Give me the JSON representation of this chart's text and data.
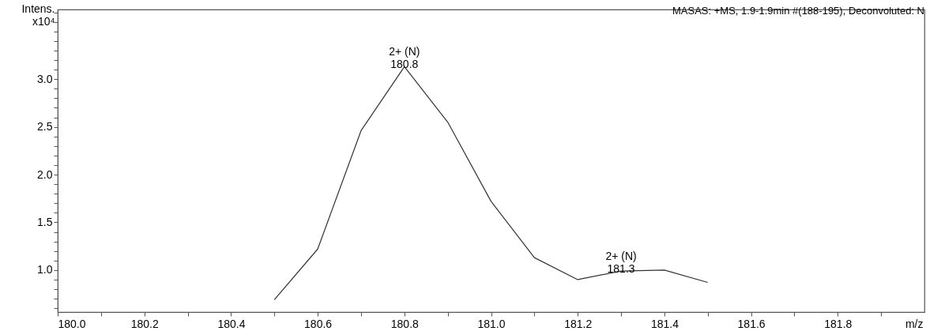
{
  "chart_data": {
    "type": "line",
    "title": "MASAS: +MS, 1.9-1.9min #(188-195), Deconvoluted: N",
    "xlabel": "m/z",
    "ylabel": "Intens.\nx10⁴",
    "x": [
      180.5,
      180.6,
      180.7,
      180.8,
      180.9,
      181.0,
      181.1,
      181.2,
      181.3,
      181.4,
      181.5
    ],
    "series": [
      {
        "color": "#333333",
        "values": [
          0.69,
          1.22,
          2.46,
          3.13,
          2.55,
          1.72,
          1.13,
          0.9,
          0.99,
          1.0,
          0.87
        ]
      }
    ],
    "xlim": [
      180.0,
      182.0
    ],
    "ylim": [
      0.56,
      3.73
    ],
    "xticks": [
      {
        "value": 180.0,
        "label": "180.0"
      },
      {
        "value": 180.1,
        "label": null
      },
      180.2,
      {
        "value": 180.3,
        "label": null
      },
      180.4,
      {
        "value": 180.5,
        "label": null
      },
      180.6,
      {
        "value": 180.7,
        "label": null
      },
      180.8,
      {
        "value": 180.9,
        "label": null
      },
      {
        "value": 181.0,
        "label": "181.0"
      },
      {
        "value": 181.1,
        "label": null
      },
      181.2,
      {
        "value": 181.3,
        "label": null
      },
      181.4,
      {
        "value": 181.5,
        "label": null
      },
      181.6,
      {
        "value": 181.7,
        "label": null
      },
      181.8,
      {
        "value": 181.9,
        "label": null
      }
    ],
    "yticks": [
      {
        "value": 0.6,
        "label": null
      },
      {
        "value": 0.7,
        "label": null
      },
      {
        "value": 0.8,
        "label": null
      },
      {
        "value": 0.9,
        "label": null
      },
      {
        "value": 1.0,
        "label": "1.0"
      },
      {
        "value": 1.1,
        "label": null
      },
      {
        "value": 1.2,
        "label": null
      },
      {
        "value": 1.3,
        "label": null
      },
      {
        "value": 1.4,
        "label": null
      },
      1.5,
      {
        "value": 1.6,
        "label": null
      },
      {
        "value": 1.7,
        "label": null
      },
      {
        "value": 1.8,
        "label": null
      },
      {
        "value": 1.9,
        "label": null
      },
      {
        "value": 2.0,
        "label": "2.0"
      },
      {
        "value": 2.1,
        "label": null
      },
      {
        "value": 2.2,
        "label": null
      },
      {
        "value": 2.3,
        "label": null
      },
      {
        "value": 2.4,
        "label": null
      },
      2.5,
      {
        "value": 2.6,
        "label": null
      },
      {
        "value": 2.7,
        "label": null
      },
      {
        "value": 2.8,
        "label": null
      },
      {
        "value": 2.9,
        "label": null
      },
      {
        "value": 3.0,
        "label": "3.0"
      },
      {
        "value": 3.1,
        "label": null
      },
      {
        "value": 3.2,
        "label": null
      },
      {
        "value": 3.3,
        "label": null
      },
      {
        "value": 3.4,
        "label": null
      },
      {
        "value": 3.5,
        "label": null
      },
      {
        "value": 3.6,
        "label": null
      },
      {
        "value": 3.7,
        "label": null
      }
    ],
    "annotations": [
      {
        "text": "2+ (N)\n180.8",
        "x": 180.8,
        "y": 3.13
      },
      {
        "text": "2+ (N)\n181.3",
        "x": 181.3,
        "y": 0.99
      }
    ],
    "grid": false,
    "marker": "none",
    "line_style": "solid"
  }
}
